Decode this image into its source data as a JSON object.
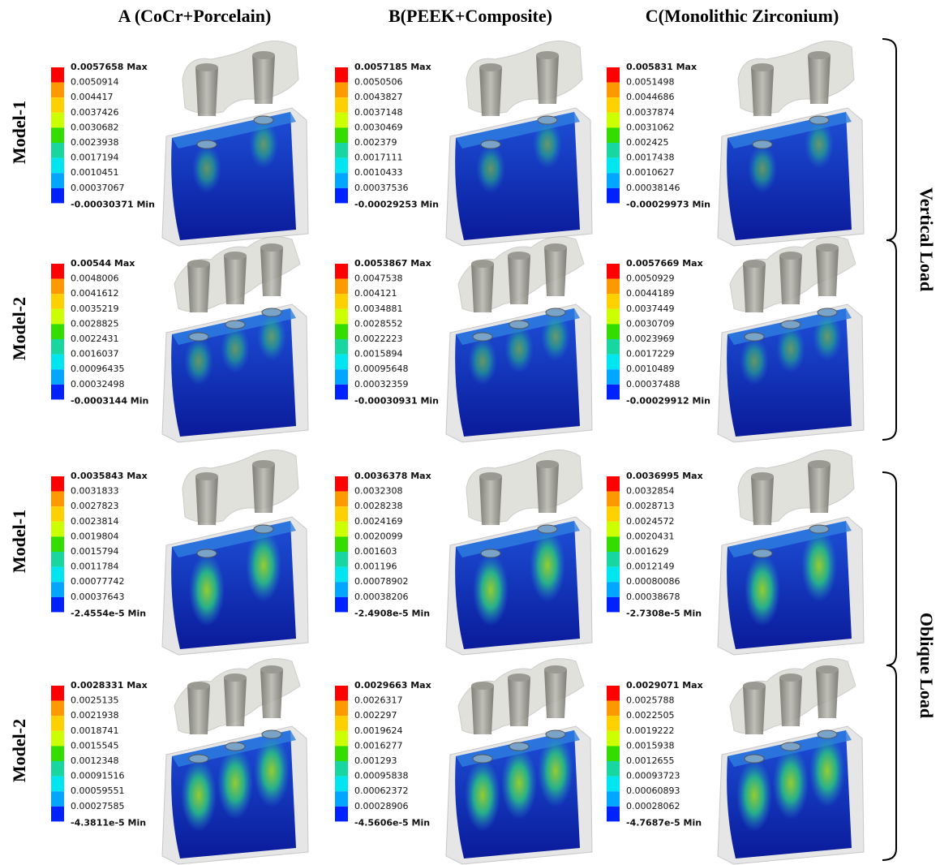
{
  "column_headers": [
    "A (CoCr+Porcelain)",
    "B(PEEK+Composite)",
    "C(Monolithic Zirconium)"
  ],
  "rows": [
    {
      "label": "Model-1",
      "panels": [
        [
          "0.0057658 Max",
          "0.0050914",
          "0.004417",
          "0.0037426",
          "0.0030682",
          "0.0023938",
          "0.0017194",
          "0.0010451",
          "0.00037067",
          "-0.00030371 Min"
        ],
        [
          "0.0057185 Max",
          "0.0050506",
          "0.0043827",
          "0.0037148",
          "0.0030469",
          "0.002379",
          "0.0017111",
          "0.0010433",
          "0.00037536",
          "-0.00029253 Min"
        ],
        [
          "0.005831 Max",
          "0.0051498",
          "0.0044686",
          "0.0037874",
          "0.0031062",
          "0.002425",
          "0.0017438",
          "0.0010627",
          "0.00038146",
          "-0.00029973 Min"
        ]
      ]
    },
    {
      "label": "Model-2",
      "panels": [
        [
          "0.00544 Max",
          "0.0048006",
          "0.0041612",
          "0.0035219",
          "0.0028825",
          "0.0022431",
          "0.0016037",
          "0.00096435",
          "0.00032498",
          "-0.0003144 Min"
        ],
        [
          "0.0053867 Max",
          "0.0047538",
          "0.004121",
          "0.0034881",
          "0.0028552",
          "0.0022223",
          "0.0015894",
          "0.00095648",
          "0.00032359",
          "-0.00030931 Min"
        ],
        [
          "0.0057669 Max",
          "0.0050929",
          "0.0044189",
          "0.0037449",
          "0.0030709",
          "0.0023969",
          "0.0017229",
          "0.0010489",
          "0.00037488",
          "-0.00029912 Min"
        ]
      ]
    },
    {
      "label": "Model-1",
      "panels": [
        [
          "0.0035843 Max",
          "0.0031833",
          "0.0027823",
          "0.0023814",
          "0.0019804",
          "0.0015794",
          "0.0011784",
          "0.00077742",
          "0.00037643",
          "-2.4554e-5 Min"
        ],
        [
          "0.0036378 Max",
          "0.0032308",
          "0.0028238",
          "0.0024169",
          "0.0020099",
          "0.001603",
          "0.001196",
          "0.00078902",
          "0.00038206",
          "-2.4908e-5 Min"
        ],
        [
          "0.0036995 Max",
          "0.0032854",
          "0.0028713",
          "0.0024572",
          "0.0020431",
          "0.001629",
          "0.0012149",
          "0.00080086",
          "0.00038678",
          "-2.7308e-5 Min"
        ]
      ]
    },
    {
      "label": "Model-2",
      "panels": [
        [
          "0.0028331 Max",
          "0.0025135",
          "0.0021938",
          "0.0018741",
          "0.0015545",
          "0.0012348",
          "0.00091516",
          "0.00059551",
          "0.00027585",
          "-4.3811e-5 Min"
        ],
        [
          "0.0029663 Max",
          "0.0026317",
          "0.002297",
          "0.0019624",
          "0.0016277",
          "0.001293",
          "0.00095838",
          "0.00062372",
          "0.00028906",
          "-4.5606e-5 Min"
        ],
        [
          "0.0029071 Max",
          "0.0025788",
          "0.0022505",
          "0.0019222",
          "0.0015938",
          "0.0012655",
          "0.00093723",
          "0.00060893",
          "0.00028062",
          "-4.7687e-5 Min"
        ]
      ]
    }
  ],
  "load_groups": [
    "Vertical Load",
    "Oblique Load"
  ]
}
